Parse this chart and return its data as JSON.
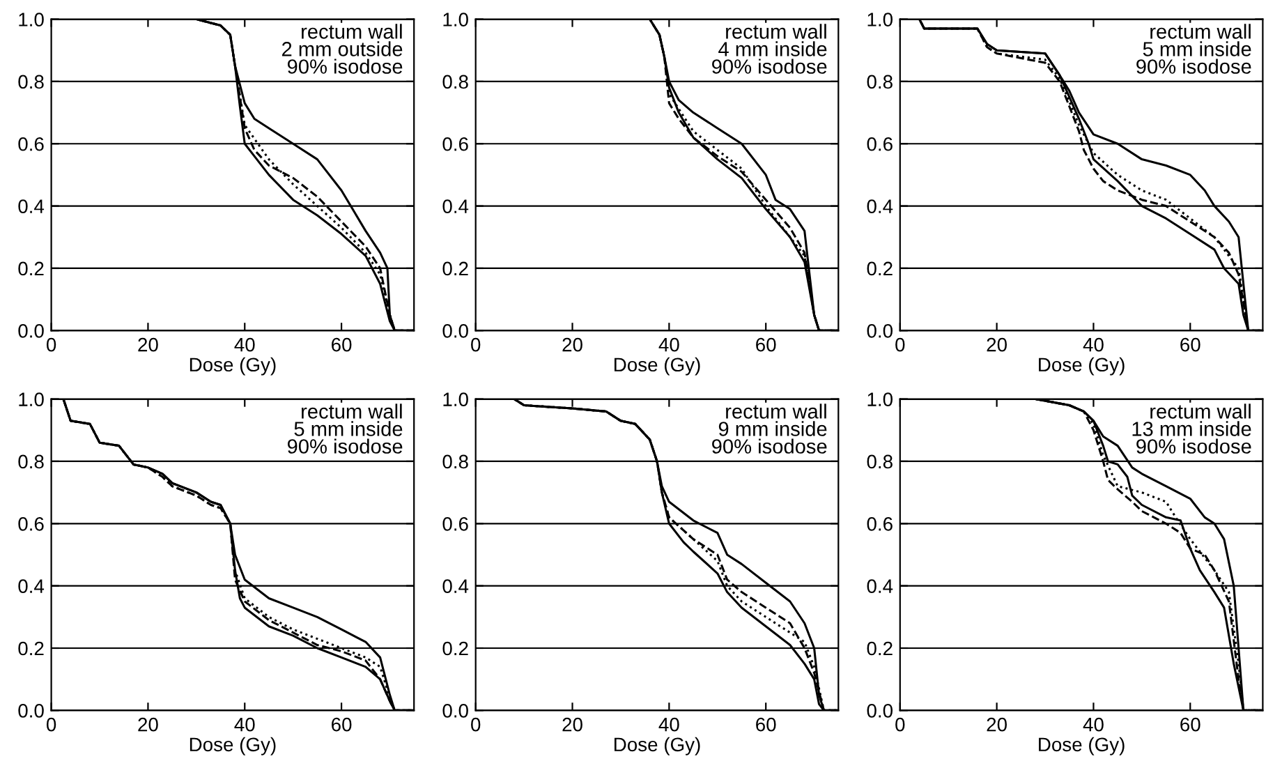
{
  "chart_data": [
    {
      "type": "line",
      "xlabel": "Dose (Gy)",
      "annotations": [
        "rectum wall\n2 mm outside\n90% isodose"
      ],
      "xlim": [
        0,
        75
      ],
      "ylim": [
        0,
        1
      ],
      "xticks": [
        0,
        20,
        40,
        60
      ],
      "yticks": [
        {
          "value": 0,
          "label": "0.0"
        },
        {
          "value": 0.2,
          "label": "0.2"
        },
        {
          "value": 0.4,
          "label": "0.4"
        },
        {
          "value": 0.6,
          "label": "0.6"
        },
        {
          "value": 0.8,
          "label": "0.8"
        },
        {
          "value": 1,
          "label": "1.0"
        }
      ],
      "grid": "y",
      "legend": false,
      "series": [
        {
          "color": "#000000",
          "line_style": "solid",
          "x": [
            0,
            30,
            35,
            37,
            38,
            39,
            40,
            42,
            45,
            50,
            55,
            60,
            65,
            68,
            70,
            71,
            75
          ],
          "values": [
            1.0,
            1.0,
            0.98,
            0.95,
            0.85,
            0.72,
            0.6,
            0.56,
            0.5,
            0.42,
            0.37,
            0.31,
            0.24,
            0.15,
            0.03,
            0.0,
            0.0
          ]
        },
        {
          "color": "#000000",
          "line_style": "solid",
          "x": [
            0,
            30,
            35,
            37,
            38,
            40,
            42,
            45,
            50,
            55,
            60,
            65,
            68,
            69.5,
            70,
            71,
            75
          ],
          "values": [
            1.0,
            1.0,
            0.98,
            0.95,
            0.85,
            0.73,
            0.68,
            0.65,
            0.6,
            0.55,
            0.45,
            0.32,
            0.25,
            0.2,
            0.05,
            0.0,
            0.0
          ]
        },
        {
          "color": "#000000",
          "line_style": "dashed",
          "x": [
            0,
            30,
            35,
            37,
            38,
            40,
            42,
            45,
            50,
            55,
            60,
            65,
            68,
            70,
            71,
            75
          ],
          "values": [
            1.0,
            1.0,
            0.98,
            0.95,
            0.85,
            0.65,
            0.58,
            0.53,
            0.49,
            0.43,
            0.35,
            0.27,
            0.2,
            0.05,
            0.0,
            0.0
          ]
        },
        {
          "color": "#000000",
          "line_style": "dotted",
          "x": [
            0,
            30,
            35,
            37,
            38,
            40,
            45,
            50,
            55,
            60,
            65,
            68,
            70,
            71,
            75
          ],
          "values": [
            1.0,
            1.0,
            0.98,
            0.95,
            0.85,
            0.66,
            0.55,
            0.47,
            0.4,
            0.33,
            0.25,
            0.18,
            0.05,
            0.0,
            0.0
          ]
        }
      ]
    },
    {
      "type": "line",
      "xlabel": "Dose (Gy)",
      "annotations": [
        "rectum wall\n4 mm inside\n90% isodose"
      ],
      "xlim": [
        0,
        75
      ],
      "ylim": [
        0,
        1
      ],
      "xticks": [
        0,
        20,
        40,
        60
      ],
      "yticks": [
        {
          "value": 0,
          "label": "0.0"
        },
        {
          "value": 0.2,
          "label": "0.2"
        },
        {
          "value": 0.4,
          "label": "0.4"
        },
        {
          "value": 0.6,
          "label": "0.6"
        },
        {
          "value": 0.8,
          "label": "0.8"
        },
        {
          "value": 1,
          "label": "1.0"
        }
      ],
      "grid": "y",
      "legend": false,
      "series": [
        {
          "color": "#000000",
          "line_style": "solid",
          "x": [
            0,
            36,
            38,
            39,
            40,
            42,
            45,
            50,
            55,
            58,
            60,
            65,
            68,
            70,
            71,
            75
          ],
          "values": [
            1.0,
            1.0,
            0.95,
            0.88,
            0.78,
            0.7,
            0.62,
            0.55,
            0.49,
            0.43,
            0.39,
            0.3,
            0.22,
            0.05,
            0.0,
            0.0
          ]
        },
        {
          "color": "#000000",
          "line_style": "solid",
          "x": [
            0,
            36,
            38,
            39,
            40,
            42,
            45,
            50,
            55,
            60,
            62,
            65,
            68,
            70,
            71,
            75
          ],
          "values": [
            1.0,
            1.0,
            0.95,
            0.88,
            0.8,
            0.74,
            0.7,
            0.65,
            0.6,
            0.5,
            0.42,
            0.39,
            0.32,
            0.05,
            0.0,
            0.0
          ]
        },
        {
          "color": "#000000",
          "line_style": "dashed",
          "x": [
            0,
            36,
            38,
            39,
            40,
            42,
            45,
            50,
            55,
            60,
            65,
            68,
            70,
            71,
            75
          ],
          "values": [
            1.0,
            1.0,
            0.95,
            0.88,
            0.73,
            0.68,
            0.62,
            0.56,
            0.51,
            0.42,
            0.33,
            0.25,
            0.05,
            0.0,
            0.0
          ]
        },
        {
          "color": "#000000",
          "line_style": "dotted",
          "x": [
            0,
            36,
            38,
            39,
            40,
            45,
            50,
            55,
            60,
            65,
            68,
            70,
            71,
            75
          ],
          "values": [
            1.0,
            1.0,
            0.95,
            0.88,
            0.76,
            0.64,
            0.58,
            0.52,
            0.4,
            0.3,
            0.24,
            0.05,
            0.0,
            0.0
          ]
        }
      ]
    },
    {
      "type": "line",
      "xlabel": "Dose (Gy)",
      "annotations": [
        "rectum wall\n5 mm inside\n90% isodose"
      ],
      "xlim": [
        0,
        75
      ],
      "ylim": [
        0,
        1
      ],
      "xticks": [
        0,
        20,
        40,
        60
      ],
      "yticks": [
        {
          "value": 0,
          "label": "0.0"
        },
        {
          "value": 0.2,
          "label": "0.2"
        },
        {
          "value": 0.4,
          "label": "0.4"
        },
        {
          "value": 0.6,
          "label": "0.6"
        },
        {
          "value": 0.8,
          "label": "0.8"
        },
        {
          "value": 1,
          "label": "1.0"
        }
      ],
      "grid": "y",
      "legend": false,
      "series": [
        {
          "color": "#000000",
          "line_style": "solid",
          "x": [
            0,
            4,
            5,
            16,
            18,
            20,
            30,
            33,
            35,
            37,
            39,
            40,
            45,
            50,
            55,
            60,
            65,
            67,
            70,
            71,
            72,
            75
          ],
          "values": [
            1.0,
            1.0,
            0.97,
            0.97,
            0.92,
            0.9,
            0.89,
            0.82,
            0.75,
            0.68,
            0.6,
            0.55,
            0.48,
            0.4,
            0.36,
            0.31,
            0.26,
            0.2,
            0.15,
            0.05,
            0.0,
            0.0
          ]
        },
        {
          "color": "#000000",
          "line_style": "solid",
          "x": [
            0,
            4,
            5,
            16,
            18,
            20,
            30,
            33,
            35,
            37,
            40,
            45,
            50,
            55,
            60,
            63,
            65,
            68,
            70,
            71,
            72,
            75
          ],
          "values": [
            1.0,
            1.0,
            0.97,
            0.97,
            0.92,
            0.9,
            0.89,
            0.82,
            0.77,
            0.7,
            0.63,
            0.6,
            0.55,
            0.53,
            0.5,
            0.45,
            0.4,
            0.35,
            0.3,
            0.15,
            0.0,
            0.0
          ]
        },
        {
          "color": "#000000",
          "line_style": "dashed",
          "x": [
            0,
            4,
            5,
            16,
            18,
            20,
            30,
            33,
            37,
            38,
            40,
            42,
            45,
            50,
            55,
            60,
            65,
            68,
            70,
            72,
            75
          ],
          "values": [
            1.0,
            1.0,
            0.97,
            0.97,
            0.91,
            0.89,
            0.86,
            0.8,
            0.64,
            0.58,
            0.52,
            0.48,
            0.45,
            0.42,
            0.4,
            0.35,
            0.3,
            0.25,
            0.18,
            0.0,
            0.0
          ]
        },
        {
          "color": "#000000",
          "line_style": "dotted",
          "x": [
            0,
            4,
            5,
            16,
            18,
            20,
            30,
            33,
            37,
            40,
            45,
            50,
            55,
            60,
            65,
            70,
            72,
            75
          ],
          "values": [
            1.0,
            1.0,
            0.97,
            0.97,
            0.91,
            0.89,
            0.87,
            0.81,
            0.66,
            0.57,
            0.5,
            0.45,
            0.42,
            0.36,
            0.3,
            0.2,
            0.0,
            0.0
          ]
        }
      ]
    },
    {
      "type": "line",
      "xlabel": "Dose (Gy)",
      "annotations": [
        "rectum wall\n5 mm inside\n90% isodose"
      ],
      "xlim": [
        0,
        75
      ],
      "ylim": [
        0,
        1
      ],
      "xticks": [
        0,
        20,
        40,
        60
      ],
      "yticks": [
        {
          "value": 0,
          "label": "0.0"
        },
        {
          "value": 0.2,
          "label": "0.2"
        },
        {
          "value": 0.4,
          "label": "0.4"
        },
        {
          "value": 0.6,
          "label": "0.6"
        },
        {
          "value": 0.8,
          "label": "0.8"
        },
        {
          "value": 1,
          "label": "1.0"
        }
      ],
      "grid": "y",
      "legend": false,
      "series": [
        {
          "color": "#000000",
          "line_style": "solid",
          "x": [
            0,
            2.5,
            4,
            8,
            10,
            14,
            17,
            20,
            23,
            25,
            30,
            33,
            35,
            37,
            38,
            39,
            40,
            45,
            50,
            55,
            60,
            65,
            68,
            70,
            71,
            75
          ],
          "values": [
            1.0,
            1.0,
            0.93,
            0.92,
            0.86,
            0.85,
            0.79,
            0.78,
            0.76,
            0.73,
            0.7,
            0.67,
            0.66,
            0.6,
            0.45,
            0.36,
            0.33,
            0.27,
            0.24,
            0.2,
            0.17,
            0.14,
            0.1,
            0.03,
            0.0,
            0.0
          ]
        },
        {
          "color": "#000000",
          "line_style": "solid",
          "x": [
            0,
            2.5,
            4,
            8,
            10,
            14,
            17,
            20,
            23,
            25,
            30,
            33,
            35,
            37,
            38,
            40,
            45,
            50,
            55,
            60,
            65,
            68,
            70,
            71,
            75
          ],
          "values": [
            1.0,
            1.0,
            0.93,
            0.92,
            0.86,
            0.85,
            0.79,
            0.78,
            0.76,
            0.73,
            0.7,
            0.67,
            0.66,
            0.6,
            0.5,
            0.42,
            0.36,
            0.33,
            0.3,
            0.26,
            0.22,
            0.17,
            0.05,
            0.0,
            0.0
          ]
        },
        {
          "color": "#000000",
          "line_style": "dashed",
          "x": [
            0,
            2.5,
            4,
            8,
            10,
            14,
            17,
            20,
            23,
            25,
            30,
            33,
            35,
            37,
            38,
            40,
            45,
            50,
            55,
            60,
            65,
            68,
            70,
            71,
            75
          ],
          "values": [
            1.0,
            1.0,
            0.93,
            0.92,
            0.86,
            0.85,
            0.79,
            0.78,
            0.75,
            0.72,
            0.69,
            0.66,
            0.65,
            0.6,
            0.42,
            0.35,
            0.29,
            0.25,
            0.21,
            0.19,
            0.16,
            0.1,
            0.03,
            0.0,
            0.0
          ]
        },
        {
          "color": "#000000",
          "line_style": "dotted",
          "x": [
            0,
            2.5,
            4,
            8,
            10,
            14,
            17,
            20,
            23,
            25,
            30,
            33,
            35,
            37,
            38,
            40,
            45,
            50,
            55,
            60,
            65,
            68,
            70,
            71,
            75
          ],
          "values": [
            1.0,
            1.0,
            0.93,
            0.92,
            0.86,
            0.85,
            0.79,
            0.78,
            0.75,
            0.72,
            0.69,
            0.66,
            0.65,
            0.6,
            0.45,
            0.36,
            0.3,
            0.26,
            0.23,
            0.2,
            0.17,
            0.14,
            0.04,
            0.0,
            0.0
          ]
        }
      ]
    },
    {
      "type": "line",
      "xlabel": "Dose (Gy)",
      "annotations": [
        "rectum wall\n9 mm inside\n90% isodose"
      ],
      "xlim": [
        0,
        75
      ],
      "ylim": [
        0,
        1
      ],
      "xticks": [
        0,
        20,
        40,
        60
      ],
      "yticks": [
        {
          "value": 0,
          "label": "0.0"
        },
        {
          "value": 0.2,
          "label": "0.2"
        },
        {
          "value": 0.4,
          "label": "0.4"
        },
        {
          "value": 0.6,
          "label": "0.6"
        },
        {
          "value": 0.8,
          "label": "0.8"
        },
        {
          "value": 1,
          "label": "1.0"
        }
      ],
      "grid": "y",
      "legend": false,
      "series": [
        {
          "color": "#000000",
          "line_style": "solid",
          "x": [
            0,
            8,
            10,
            20,
            27,
            30,
            33,
            36,
            37.5,
            38.5,
            40,
            43,
            45,
            50,
            52,
            55,
            60,
            65,
            68,
            70,
            71,
            72,
            75
          ],
          "values": [
            1.0,
            1.0,
            0.98,
            0.97,
            0.96,
            0.93,
            0.92,
            0.87,
            0.8,
            0.7,
            0.6,
            0.54,
            0.51,
            0.44,
            0.38,
            0.33,
            0.27,
            0.21,
            0.15,
            0.1,
            0.02,
            0.0,
            0.0
          ]
        },
        {
          "color": "#000000",
          "line_style": "solid",
          "x": [
            0,
            8,
            10,
            20,
            27,
            30,
            33,
            36,
            37.5,
            38.5,
            40,
            45,
            50,
            52,
            55,
            60,
            65,
            68,
            70,
            71,
            72,
            75
          ],
          "values": [
            1.0,
            1.0,
            0.98,
            0.97,
            0.96,
            0.93,
            0.92,
            0.87,
            0.8,
            0.72,
            0.67,
            0.61,
            0.57,
            0.5,
            0.47,
            0.41,
            0.35,
            0.28,
            0.2,
            0.05,
            0.0,
            0.0
          ]
        },
        {
          "color": "#000000",
          "line_style": "dashed",
          "x": [
            0,
            8,
            10,
            20,
            27,
            30,
            33,
            36,
            37.5,
            38.5,
            40,
            45,
            50,
            52,
            55,
            60,
            65,
            68,
            70,
            72,
            75
          ],
          "values": [
            1.0,
            1.0,
            0.98,
            0.97,
            0.96,
            0.93,
            0.92,
            0.87,
            0.8,
            0.7,
            0.62,
            0.55,
            0.5,
            0.42,
            0.38,
            0.33,
            0.28,
            0.2,
            0.12,
            0.0,
            0.0
          ]
        },
        {
          "color": "#000000",
          "line_style": "dotted",
          "x": [
            0,
            8,
            10,
            20,
            27,
            30,
            33,
            36,
            37.5,
            38.5,
            40,
            45,
            50,
            52,
            55,
            60,
            65,
            68,
            70,
            72,
            75
          ],
          "values": [
            1.0,
            1.0,
            0.98,
            0.97,
            0.96,
            0.93,
            0.92,
            0.87,
            0.8,
            0.7,
            0.62,
            0.55,
            0.48,
            0.4,
            0.35,
            0.3,
            0.25,
            0.22,
            0.14,
            0.0,
            0.0
          ]
        }
      ]
    },
    {
      "type": "line",
      "xlabel": "Dose (Gy)",
      "annotations": [
        "rectum wall\n13 mm inside\n90% isodose"
      ],
      "xlim": [
        0,
        75
      ],
      "ylim": [
        0,
        1
      ],
      "xticks": [
        0,
        20,
        40,
        60
      ],
      "yticks": [
        {
          "value": 0,
          "label": "0.0"
        },
        {
          "value": 0.2,
          "label": "0.2"
        },
        {
          "value": 0.4,
          "label": "0.4"
        },
        {
          "value": 0.6,
          "label": "0.6"
        },
        {
          "value": 0.8,
          "label": "0.8"
        },
        {
          "value": 1,
          "label": "1.0"
        }
      ],
      "grid": "y",
      "legend": false,
      "series": [
        {
          "color": "#000000",
          "line_style": "solid",
          "x": [
            0,
            28,
            35,
            38,
            40,
            42,
            43,
            45,
            47,
            48,
            50,
            55,
            58,
            60,
            62,
            65,
            67,
            69,
            71,
            75
          ],
          "values": [
            1.0,
            1.0,
            0.98,
            0.96,
            0.93,
            0.85,
            0.8,
            0.79,
            0.75,
            0.69,
            0.66,
            0.62,
            0.61,
            0.52,
            0.45,
            0.38,
            0.33,
            0.15,
            0.0,
            0.0
          ]
        },
        {
          "color": "#000000",
          "line_style": "solid",
          "x": [
            0,
            28,
            35,
            38,
            40,
            42,
            45,
            48,
            50,
            55,
            60,
            63,
            65,
            67,
            69,
            70,
            71,
            75
          ],
          "values": [
            1.0,
            1.0,
            0.98,
            0.96,
            0.93,
            0.88,
            0.85,
            0.78,
            0.76,
            0.72,
            0.68,
            0.62,
            0.6,
            0.55,
            0.4,
            0.2,
            0.0,
            0.0
          ]
        },
        {
          "color": "#000000",
          "line_style": "dashed",
          "x": [
            0,
            28,
            35,
            38,
            40,
            42,
            43,
            45,
            48,
            50,
            55,
            58,
            60,
            63,
            65,
            68,
            70,
            71,
            75
          ],
          "values": [
            1.0,
            1.0,
            0.98,
            0.96,
            0.9,
            0.8,
            0.74,
            0.71,
            0.67,
            0.64,
            0.6,
            0.57,
            0.52,
            0.5,
            0.45,
            0.35,
            0.1,
            0.0,
            0.0
          ]
        },
        {
          "color": "#000000",
          "line_style": "dotted",
          "x": [
            0,
            28,
            35,
            38,
            40,
            42,
            45,
            50,
            55,
            57,
            60,
            65,
            68,
            70,
            71,
            75
          ],
          "values": [
            1.0,
            1.0,
            0.98,
            0.96,
            0.92,
            0.82,
            0.72,
            0.7,
            0.67,
            0.62,
            0.55,
            0.45,
            0.38,
            0.15,
            0.0,
            0.0
          ]
        }
      ]
    }
  ]
}
